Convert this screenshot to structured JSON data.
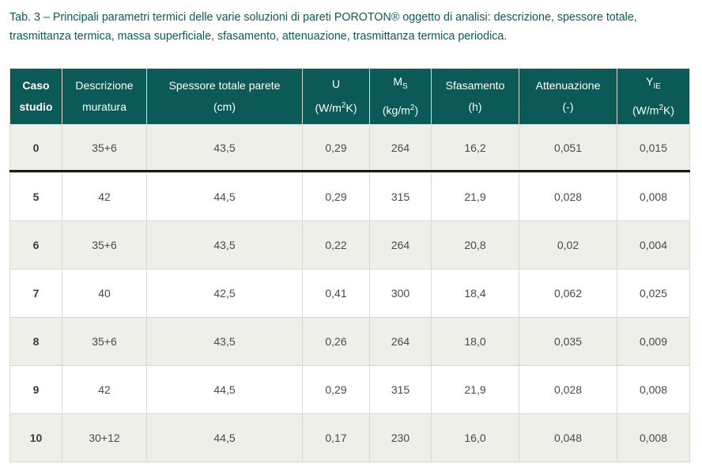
{
  "caption": {
    "line1": "Tab. 3 – Principali parametri termici delle varie soluzioni di pareti POROTON® oggetto di analisi: descrizione, spessore totale,",
    "line2": "trasmittanza termica, massa superficiale, sfasamento, attenuazione, trasmittanza termica periodica."
  },
  "headers": {
    "case": {
      "l1": "Caso",
      "l2": "studio"
    },
    "desc": {
      "l1": "Descrizione",
      "l2": "muratura"
    },
    "thickness": {
      "l1": "Spessore totale parete",
      "l2": "(cm)"
    },
    "u": {
      "l1": "U",
      "l2_pre": "(W/m",
      "l2_sup": "2",
      "l2_post": "K)"
    },
    "ms": {
      "l1_main": "M",
      "l1_sub": "S",
      "l2_pre": "(kg/m",
      "l2_sup": "2",
      "l2_post": ")"
    },
    "phase": {
      "l1": "Sfasamento",
      "l2": "(h)"
    },
    "atten": {
      "l1": "Attenuazione",
      "l2": "(-)"
    },
    "yie": {
      "l1_main": "Y",
      "l1_sub": "IE",
      "l2_pre": "(W/m",
      "l2_sup": "2",
      "l2_post": "K)"
    }
  },
  "rows": [
    {
      "case": "0",
      "desc": "35+6",
      "thickness": "43,5",
      "u": "0,29",
      "ms": "264",
      "phase": "16,2",
      "atten": "0,051",
      "yie": "0,015"
    },
    {
      "case": "5",
      "desc": "42",
      "thickness": "44,5",
      "u": "0,29",
      "ms": "315",
      "phase": "21,9",
      "atten": "0,028",
      "yie": "0,008"
    },
    {
      "case": "6",
      "desc": "35+6",
      "thickness": "43,5",
      "u": "0,22",
      "ms": "264",
      "phase": "20,8",
      "atten": "0,02",
      "yie": "0,004"
    },
    {
      "case": "7",
      "desc": "40",
      "thickness": "42,5",
      "u": "0,41",
      "ms": "300",
      "phase": "18,4",
      "atten": "0,062",
      "yie": "0,025"
    },
    {
      "case": "8",
      "desc": "35+6",
      "thickness": "43,5",
      "u": "0,26",
      "ms": "264",
      "phase": "18,0",
      "atten": "0,035",
      "yie": "0,009"
    },
    {
      "case": "9",
      "desc": "42",
      "thickness": "44,5",
      "u": "0,29",
      "ms": "315",
      "phase": "21,9",
      "atten": "0,028",
      "yie": "0,008"
    },
    {
      "case": "10",
      "desc": "30+12",
      "thickness": "44,5",
      "u": "0,17",
      "ms": "230",
      "phase": "16,0",
      "atten": "0,048",
      "yie": "0,008"
    }
  ]
}
